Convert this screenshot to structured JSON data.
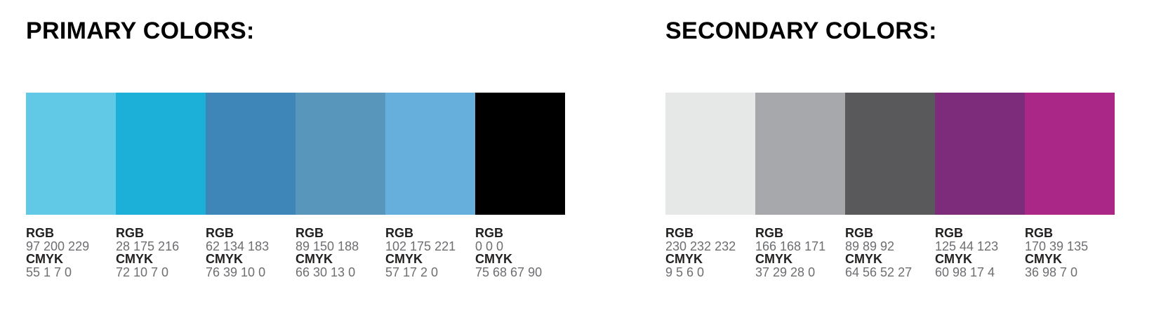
{
  "labels": {
    "rgb": "RGB",
    "cmyk": "CMYK"
  },
  "sections": [
    {
      "id": "primary",
      "title": "PRIMARY COLORS:",
      "swatches": [
        {
          "name": "light-cyan-blue",
          "hex": "#61C8E5",
          "rgb": "97 200 229",
          "cmyk": "55 1 7 0"
        },
        {
          "name": "cyan-blue",
          "hex": "#1CAFD8",
          "rgb": "28 175 216",
          "cmyk": "72 10 7 0"
        },
        {
          "name": "steel-blue",
          "hex": "#3E86B7",
          "rgb": "62 134 183",
          "cmyk": "76 39 10 0"
        },
        {
          "name": "slate-blue",
          "hex": "#5996BC",
          "rgb": "89 150 188",
          "cmyk": "66 30 13 0"
        },
        {
          "name": "sky-blue",
          "hex": "#66AFDD",
          "rgb": "102 175 221",
          "cmyk": "57 17 2 0"
        },
        {
          "name": "black",
          "hex": "#000000",
          "rgb": "0 0 0",
          "cmyk": "75 68 67 90"
        }
      ]
    },
    {
      "id": "secondary",
      "title": "SECONDARY COLORS:",
      "swatches": [
        {
          "name": "light-gray",
          "hex": "#E6E8E8",
          "rgb": "230 232 232",
          "cmyk": "9 5 6 0"
        },
        {
          "name": "gray",
          "hex": "#A6A8AB",
          "rgb": "166 168 171",
          "cmyk": "37 29 28 0"
        },
        {
          "name": "dark-gray",
          "hex": "#59595C",
          "rgb": "89 89 92",
          "cmyk": "64 56 52 27"
        },
        {
          "name": "purple",
          "hex": "#7D2C7B",
          "rgb": "125 44 123",
          "cmyk": "60 98 17 4"
        },
        {
          "name": "magenta",
          "hex": "#AA2787",
          "rgb": "170 39 135",
          "cmyk": "36 98 7 0"
        }
      ]
    }
  ]
}
